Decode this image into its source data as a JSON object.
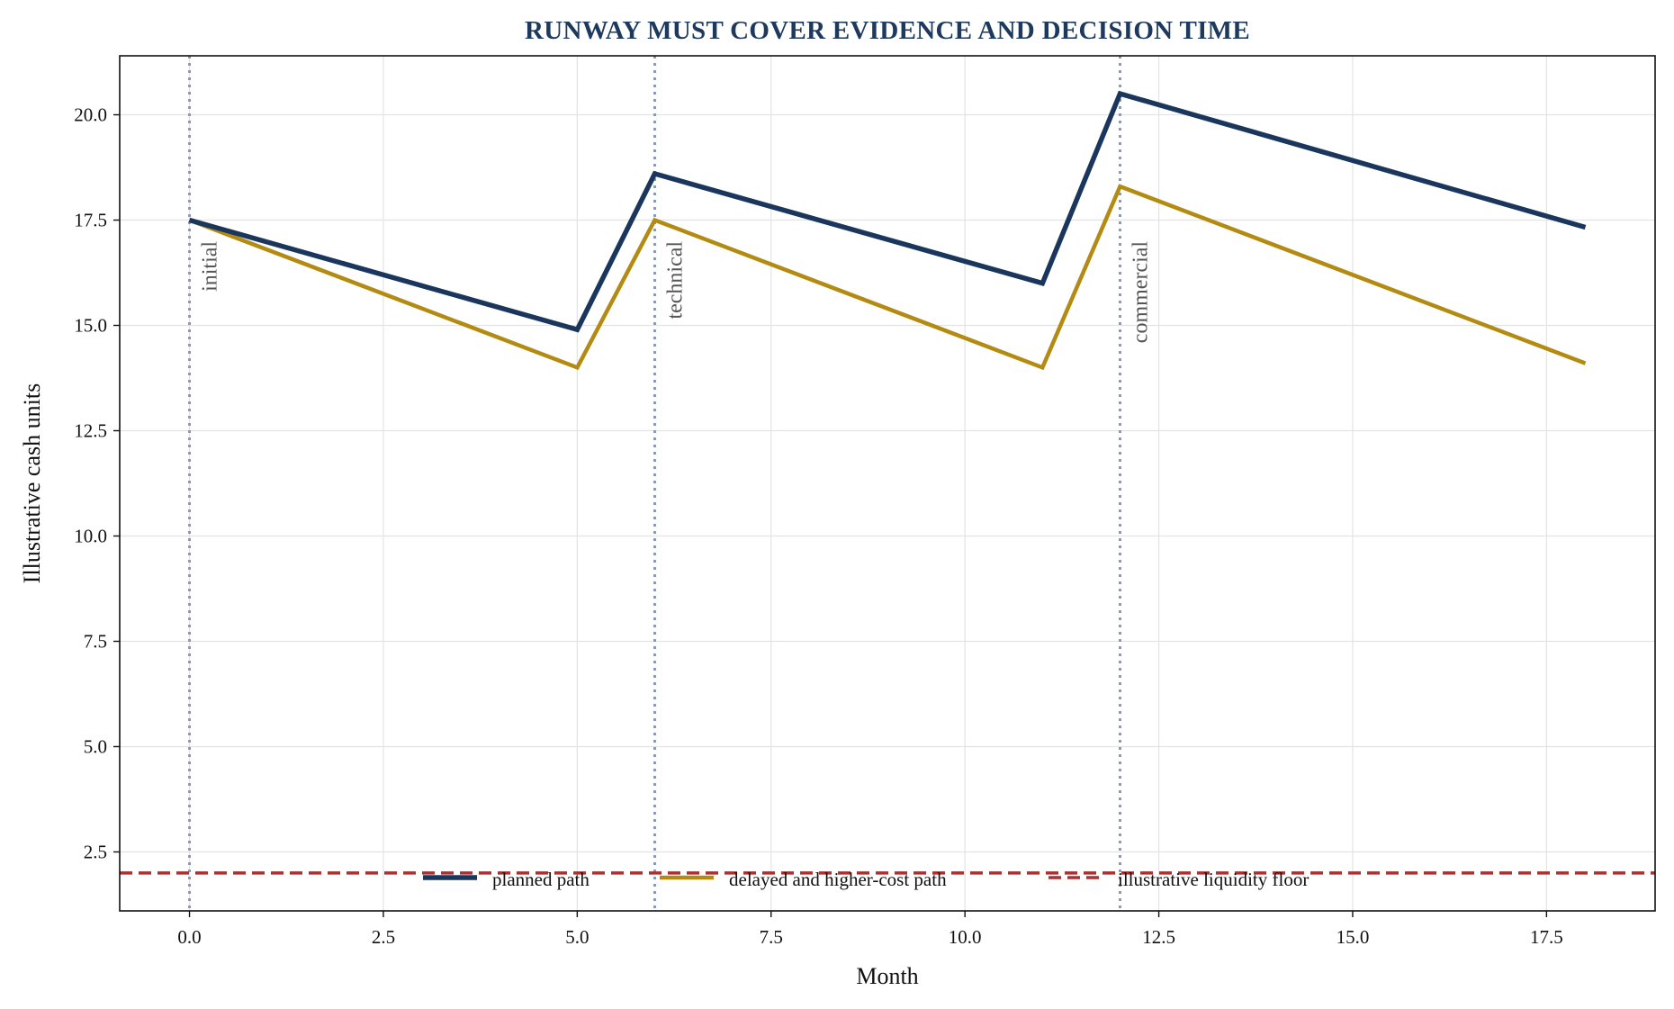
{
  "chart_data": {
    "type": "line",
    "title": "RUNWAY MUST COVER EVIDENCE AND DECISION TIME",
    "xlabel": "Month",
    "ylabel": "Illustrative cash units",
    "xlim": [
      -0.9,
      18.9
    ],
    "ylim": [
      1.1,
      21.4
    ],
    "xticks": [
      0.0,
      2.5,
      5.0,
      7.5,
      10.0,
      12.5,
      15.0,
      17.5
    ],
    "xtick_labels": [
      "0.0",
      "2.5",
      "5.0",
      "7.5",
      "10.0",
      "12.5",
      "15.0",
      "17.5"
    ],
    "yticks": [
      2.5,
      5.0,
      7.5,
      10.0,
      12.5,
      15.0,
      17.5,
      20.0
    ],
    "ytick_labels": [
      "2.5",
      "5.0",
      "7.5",
      "10.0",
      "12.5",
      "15.0",
      "17.5",
      "20.0"
    ],
    "grid": true,
    "legend_position": "bottom-center",
    "series": [
      {
        "name": "planned path",
        "color": "#1b365d",
        "style": "solid",
        "x": [
          0,
          5,
          6,
          11,
          12,
          18
        ],
        "y": [
          17.5,
          14.9,
          18.6,
          16.0,
          20.5,
          17.33
        ]
      },
      {
        "name": "delayed and higher-cost path",
        "color": "#b38b12",
        "style": "solid",
        "x": [
          0,
          5,
          6,
          11,
          12,
          18
        ],
        "y": [
          17.5,
          14.0,
          17.5,
          14.0,
          18.3,
          14.1
        ]
      }
    ],
    "reference_line": {
      "name": "illustrative liquidity floor",
      "color": "#a83232",
      "style": "dashed",
      "y": 2.0
    },
    "vertical_markers": [
      {
        "x": 0,
        "label": "initial"
      },
      {
        "x": 6,
        "label": "technical"
      },
      {
        "x": 12,
        "label": "commercial"
      }
    ],
    "marker_color": "#8a9ab5"
  }
}
